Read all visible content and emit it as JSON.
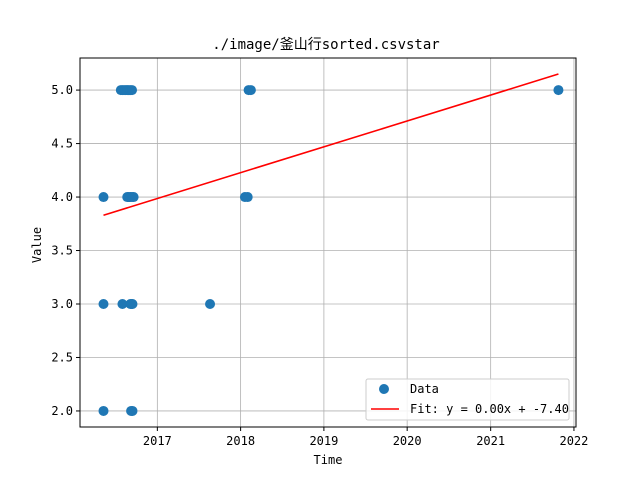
{
  "chart_data": {
    "type": "scatter",
    "title": "./image/釜山行sorted.csvstar",
    "xlabel": "Time",
    "ylabel": "Value",
    "x_is_date": true,
    "xlim": [
      "2016-01-28",
      "2022-01-10"
    ],
    "ylim": [
      1.85,
      5.3
    ],
    "xticks": [
      {
        "label": "2017",
        "value": "2017-01-01"
      },
      {
        "label": "2018",
        "value": "2018-01-01"
      },
      {
        "label": "2019",
        "value": "2019-01-01"
      },
      {
        "label": "2020",
        "value": "2020-01-01"
      },
      {
        "label": "2021",
        "value": "2021-01-01"
      },
      {
        "label": "2022",
        "value": "2022-01-01"
      }
    ],
    "yticks": [
      {
        "label": "2.0",
        "value": 2.0
      },
      {
        "label": "2.5",
        "value": 2.5
      },
      {
        "label": "3.0",
        "value": 3.0
      },
      {
        "label": "3.5",
        "value": 3.5
      },
      {
        "label": "4.0",
        "value": 4.0
      },
      {
        "label": "4.5",
        "value": 4.5
      },
      {
        "label": "5.0",
        "value": 5.0
      }
    ],
    "grid": true,
    "legend_position": "lower-right",
    "colors": {
      "data": "#1f77b4",
      "fit": "#ff0000",
      "grid": "#b0b0b0"
    },
    "series": [
      {
        "name": "Data",
        "kind": "scatter",
        "points": [
          {
            "x": "2016-05-10",
            "y": 2.0
          },
          {
            "x": "2016-05-10",
            "y": 3.0
          },
          {
            "x": "2016-05-10",
            "y": 4.0
          },
          {
            "x": "2016-07-25",
            "y": 5.0
          },
          {
            "x": "2016-08-01",
            "y": 5.0
          },
          {
            "x": "2016-08-08",
            "y": 5.0
          },
          {
            "x": "2016-08-15",
            "y": 5.0
          },
          {
            "x": "2016-08-22",
            "y": 5.0
          },
          {
            "x": "2016-08-29",
            "y": 5.0
          },
          {
            "x": "2016-09-05",
            "y": 5.0
          },
          {
            "x": "2016-09-12",
            "y": 5.0
          },
          {
            "x": "2016-08-01",
            "y": 3.0
          },
          {
            "x": "2016-08-22",
            "y": 4.0
          },
          {
            "x": "2016-08-29",
            "y": 4.0
          },
          {
            "x": "2016-09-05",
            "y": 4.0
          },
          {
            "x": "2016-09-12",
            "y": 4.0
          },
          {
            "x": "2016-09-19",
            "y": 4.0
          },
          {
            "x": "2016-09-05",
            "y": 3.0
          },
          {
            "x": "2016-09-10",
            "y": 3.0
          },
          {
            "x": "2016-09-14",
            "y": 3.0
          },
          {
            "x": "2016-09-08",
            "y": 2.0
          },
          {
            "x": "2016-09-14",
            "y": 2.0
          },
          {
            "x": "2017-08-20",
            "y": 3.0
          },
          {
            "x": "2018-01-20",
            "y": 4.0
          },
          {
            "x": "2018-02-01",
            "y": 4.0
          },
          {
            "x": "2018-02-05",
            "y": 5.0
          },
          {
            "x": "2018-02-15",
            "y": 5.0
          },
          {
            "x": "2021-10-25",
            "y": 5.0
          }
        ]
      },
      {
        "name": "Fit: y = 0.00x + -7.40",
        "kind": "line",
        "points": [
          {
            "x": "2016-05-10",
            "y": 3.83
          },
          {
            "x": "2021-10-25",
            "y": 5.15
          }
        ]
      }
    ]
  }
}
